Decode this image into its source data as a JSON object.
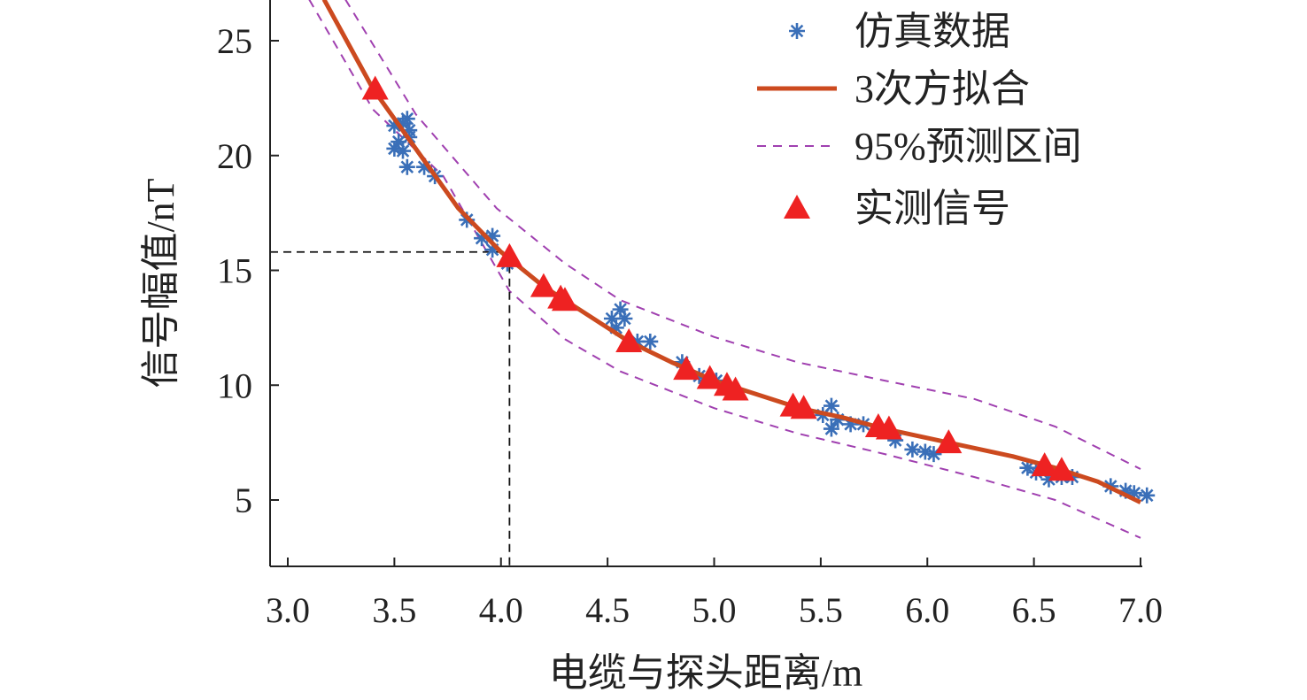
{
  "chart_data": {
    "type": "scatter",
    "title": "",
    "xlabel": "电缆与探头距离/m",
    "ylabel": "信号幅值/nT",
    "xlim": [
      2.92,
      7.0
    ],
    "ylim": [
      2.1,
      26.8
    ],
    "xticks": [
      "3.0",
      "3.5",
      "4.0",
      "4.5",
      "5.0",
      "5.5",
      "6.0",
      "6.5",
      "7.0"
    ],
    "xtick_values": [
      3.0,
      3.5,
      4.0,
      4.5,
      5.0,
      5.5,
      6.0,
      6.5,
      7.0
    ],
    "yticks": [
      "5",
      "10",
      "15",
      "20",
      "25"
    ],
    "ytick_values": [
      5,
      10,
      15,
      20,
      25
    ],
    "grid": false,
    "legend_position": "top-right",
    "colors": {
      "sim": "#3a6fb8",
      "fit": "#cc4a1f",
      "band": "#a040b0",
      "measured": "#ee2222",
      "ref": "#111111"
    },
    "series": [
      {
        "name": "仿真数据",
        "kind": "star",
        "x": [
          3.5,
          3.54,
          3.56,
          3.57,
          3.5,
          3.52,
          3.54,
          3.57,
          3.56,
          3.64,
          3.69,
          3.84,
          3.91,
          3.96,
          3.96,
          4.03,
          4.52,
          4.56,
          4.58,
          4.54,
          4.64,
          4.7,
          4.85,
          4.93,
          4.97,
          5.01,
          5.51,
          5.55,
          5.58,
          5.55,
          5.64,
          5.7,
          5.85,
          5.93,
          5.99,
          6.03,
          6.47,
          6.51,
          6.57,
          6.63,
          6.68,
          6.86,
          6.93,
          6.97,
          7.03
        ],
        "y": [
          21.3,
          21.4,
          21.6,
          21.1,
          20.3,
          20.6,
          20.2,
          20.8,
          19.5,
          19.5,
          19.1,
          17.2,
          16.4,
          16.5,
          15.9,
          15.3,
          12.9,
          13.3,
          12.9,
          12.5,
          11.9,
          11.9,
          11.0,
          10.4,
          10.2,
          10.2,
          8.7,
          9.1,
          8.5,
          8.1,
          8.3,
          8.3,
          7.6,
          7.2,
          7.1,
          7.0,
          6.4,
          6.2,
          5.9,
          6.0,
          6.0,
          5.6,
          5.4,
          5.3,
          5.2
        ]
      },
      {
        "name": "3次方拟合",
        "kind": "line",
        "x": [
          3.17,
          3.4,
          3.6,
          3.8,
          4.0,
          4.2,
          4.4,
          4.6,
          4.8,
          5.0,
          5.2,
          5.4,
          5.6,
          5.8,
          6.0,
          6.2,
          6.4,
          6.6,
          6.8,
          7.0
        ],
        "y": [
          26.8,
          22.9,
          20.3,
          17.7,
          15.8,
          14.3,
          13.1,
          11.9,
          11.0,
          10.2,
          9.6,
          9.0,
          8.6,
          8.1,
          7.7,
          7.3,
          6.9,
          6.4,
          5.8,
          4.9
        ]
      },
      {
        "name": "95%预测区间",
        "kind": "dashed",
        "upper": {
          "x": [
            3.27,
            3.6,
            3.98,
            4.3,
            4.56,
            5.0,
            5.39,
            5.8,
            6.22,
            6.6,
            7.0
          ],
          "y": [
            26.8,
            21.8,
            17.7,
            15.3,
            13.7,
            12.1,
            11.0,
            10.2,
            9.4,
            8.2,
            6.35
          ]
        },
        "lower": {
          "x": [
            3.1,
            3.4,
            3.73,
            4.04,
            4.3,
            4.56,
            5.0,
            5.39,
            5.8,
            6.22,
            6.6,
            7.0
          ],
          "y": [
            26.8,
            22.0,
            19.1,
            14.1,
            12.0,
            10.6,
            9.0,
            7.9,
            7.0,
            6.0,
            5.0,
            3.35
          ]
        }
      },
      {
        "name": "实测信号",
        "kind": "triangle",
        "x": [
          3.41,
          4.04,
          4.2,
          4.28,
          4.3,
          4.6,
          4.87,
          4.98,
          5.06,
          5.1,
          5.37,
          5.42,
          5.77,
          5.82,
          6.1,
          6.55,
          6.63
        ],
        "y": [
          22.9,
          15.6,
          14.3,
          13.8,
          13.7,
          11.9,
          10.7,
          10.3,
          10.0,
          9.8,
          9.1,
          9.0,
          8.2,
          8.1,
          7.5,
          6.5,
          6.3
        ]
      }
    ],
    "reference_point": {
      "x": 4.04,
      "y": 15.8
    }
  }
}
